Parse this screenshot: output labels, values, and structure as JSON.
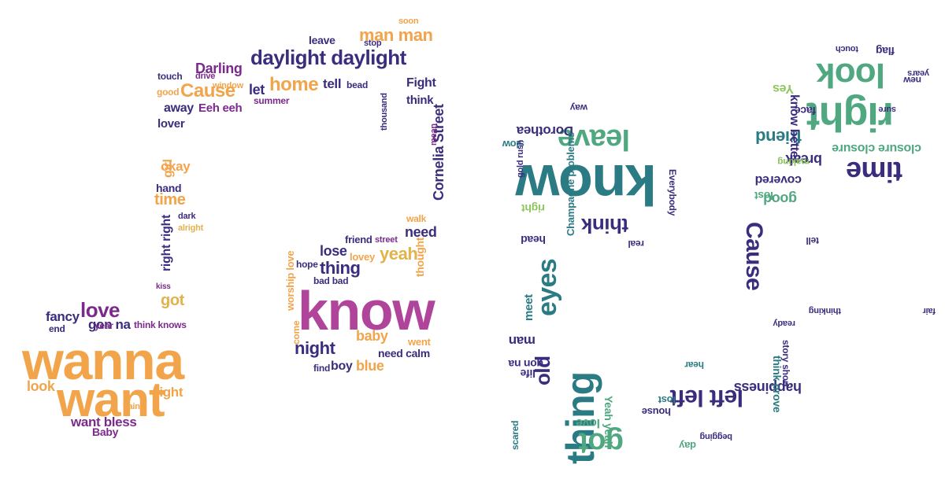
{
  "palette": {
    "orange": "#f2a44b",
    "purple": "#7b2a8c",
    "magenta": "#b0449b",
    "navy": "#3b2c7e",
    "yellow": "#e2b24b",
    "teal": "#2b7b84",
    "green": "#50a880",
    "lime": "#8ec55e",
    "blue": "#2f5f8f"
  },
  "note_left": {
    "words": [
      {
        "text": "wanna",
        "color": "orange"
      },
      {
        "text": "want",
        "color": "orange"
      },
      {
        "text": "love",
        "color": "purple"
      },
      {
        "text": "fancy",
        "color": "navy"
      },
      {
        "text": "gon na",
        "color": "navy"
      },
      {
        "text": "got",
        "color": "yellow"
      },
      {
        "text": "think knows",
        "color": "purple"
      },
      {
        "text": "right right",
        "color": "navy"
      },
      {
        "text": "time",
        "color": "orange"
      },
      {
        "text": "okay",
        "color": "orange"
      },
      {
        "text": "hand",
        "color": "navy"
      },
      {
        "text": "lover",
        "color": "navy"
      },
      {
        "text": "away",
        "color": "navy"
      },
      {
        "text": "Cause",
        "color": "orange"
      },
      {
        "text": "Darling",
        "color": "purple"
      },
      {
        "text": "daylight daylight",
        "color": "navy"
      },
      {
        "text": "man man",
        "color": "orange"
      },
      {
        "text": "home",
        "color": "orange"
      },
      {
        "text": "let",
        "color": "navy"
      },
      {
        "text": "tell",
        "color": "navy"
      },
      {
        "text": "Fight",
        "color": "navy"
      },
      {
        "text": "think",
        "color": "navy"
      },
      {
        "text": "Cornelia Street",
        "color": "navy"
      },
      {
        "text": "need",
        "color": "navy"
      },
      {
        "text": "yeah",
        "color": "yellow"
      },
      {
        "text": "know",
        "color": "magenta"
      },
      {
        "text": "thing",
        "color": "navy"
      },
      {
        "text": "lose",
        "color": "navy"
      },
      {
        "text": "night",
        "color": "navy"
      },
      {
        "text": "baby",
        "color": "orange"
      },
      {
        "text": "boy",
        "color": "navy"
      },
      {
        "text": "blue",
        "color": "orange"
      },
      {
        "text": "light",
        "color": "orange"
      },
      {
        "text": "want bless",
        "color": "purple"
      },
      {
        "text": "look",
        "color": "orange"
      },
      {
        "text": "Eeh eeh",
        "color": "purple"
      },
      {
        "text": "Baby",
        "color": "purple"
      },
      {
        "text": "leave",
        "color": "navy"
      },
      {
        "text": "worship love",
        "color": "orange"
      },
      {
        "text": "year",
        "color": "purple"
      },
      {
        "text": "end",
        "color": "navy"
      },
      {
        "text": "girl",
        "color": "orange"
      },
      {
        "text": "dark",
        "color": "navy"
      },
      {
        "text": "hope",
        "color": "navy"
      },
      {
        "text": "friend",
        "color": "navy"
      },
      {
        "text": "summer",
        "color": "purple"
      },
      {
        "text": "touch",
        "color": "navy"
      },
      {
        "text": "good",
        "color": "orange"
      },
      {
        "text": "lovey",
        "color": "orange"
      },
      {
        "text": "bad bad",
        "color": "navy"
      },
      {
        "text": "need calm",
        "color": "navy"
      },
      {
        "text": "bead",
        "color": "navy"
      },
      {
        "text": "thought",
        "color": "orange"
      },
      {
        "text": "went",
        "color": "orange"
      },
      {
        "text": "find",
        "color": "navy"
      },
      {
        "text": "kiss",
        "color": "purple"
      },
      {
        "text": "stop",
        "color": "navy"
      },
      {
        "text": "mean",
        "color": "purple"
      },
      {
        "text": "thousand",
        "color": "navy"
      },
      {
        "text": "come",
        "color": "orange"
      },
      {
        "text": "walk",
        "color": "orange"
      },
      {
        "text": "alright",
        "color": "yellow"
      },
      {
        "text": "soon",
        "color": "orange"
      },
      {
        "text": "window",
        "color": "orange"
      },
      {
        "text": "paint",
        "color": "orange"
      },
      {
        "text": "drive",
        "color": "purple"
      },
      {
        "text": "street",
        "color": "purple"
      },
      {
        "text": "gone",
        "color": "purple"
      }
    ]
  },
  "note_right": {
    "words": [
      {
        "text": "know",
        "color": "teal"
      },
      {
        "text": "leave",
        "color": "green"
      },
      {
        "text": "think",
        "color": "navy"
      },
      {
        "text": "eyes",
        "color": "teal"
      },
      {
        "text": "thing",
        "color": "teal"
      },
      {
        "text": "old",
        "color": "navy"
      },
      {
        "text": "got",
        "color": "green"
      },
      {
        "text": "left left",
        "color": "navy"
      },
      {
        "text": "happiness",
        "color": "navy"
      },
      {
        "text": "Cause",
        "color": "navy"
      },
      {
        "text": "time",
        "color": "navy"
      },
      {
        "text": "right",
        "color": "green"
      },
      {
        "text": "look",
        "color": "green"
      },
      {
        "text": "friend",
        "color": "teal"
      },
      {
        "text": "break",
        "color": "navy"
      },
      {
        "text": "closure closure",
        "color": "green"
      },
      {
        "text": "know better",
        "color": "navy"
      },
      {
        "text": "good",
        "color": "green"
      },
      {
        "text": "covered",
        "color": "navy"
      },
      {
        "text": "Dorothea",
        "color": "navy"
      },
      {
        "text": "Champagne problems",
        "color": "teal"
      },
      {
        "text": "head",
        "color": "navy"
      },
      {
        "text": "right",
        "color": "lime"
      },
      {
        "text": "meet",
        "color": "teal"
      },
      {
        "text": "man",
        "color": "navy"
      },
      {
        "text": "gon na",
        "color": "navy"
      },
      {
        "text": "life",
        "color": "navy"
      },
      {
        "text": "love",
        "color": "green"
      },
      {
        "text": "Yeah yeah",
        "color": "green"
      },
      {
        "text": "think prove",
        "color": "teal"
      },
      {
        "text": "story short",
        "color": "navy"
      },
      {
        "text": "house",
        "color": "navy"
      },
      {
        "text": "lost",
        "color": "teal"
      },
      {
        "text": "Everybody",
        "color": "navy"
      },
      {
        "text": "new",
        "color": "navy"
      },
      {
        "text": "face",
        "color": "navy"
      },
      {
        "text": "Yes",
        "color": "lime"
      },
      {
        "text": "sure",
        "color": "navy"
      },
      {
        "text": "day",
        "color": "green"
      },
      {
        "text": "real",
        "color": "navy"
      },
      {
        "text": "tell",
        "color": "navy"
      },
      {
        "text": "begging",
        "color": "navy"
      },
      {
        "text": "hear",
        "color": "teal"
      },
      {
        "text": "ready",
        "color": "navy"
      },
      {
        "text": "thinking",
        "color": "navy"
      },
      {
        "text": "slow",
        "color": "teal"
      },
      {
        "text": "scared",
        "color": "teal"
      },
      {
        "text": "years",
        "color": "navy"
      },
      {
        "text": "way",
        "color": "navy"
      },
      {
        "text": "touch",
        "color": "navy"
      },
      {
        "text": "making",
        "color": "lime"
      },
      {
        "text": "flag",
        "color": "navy"
      },
      {
        "text": "gold rush",
        "color": "navy"
      },
      {
        "text": "lost",
        "color": "green"
      },
      {
        "text": "fair",
        "color": "navy"
      }
    ]
  }
}
